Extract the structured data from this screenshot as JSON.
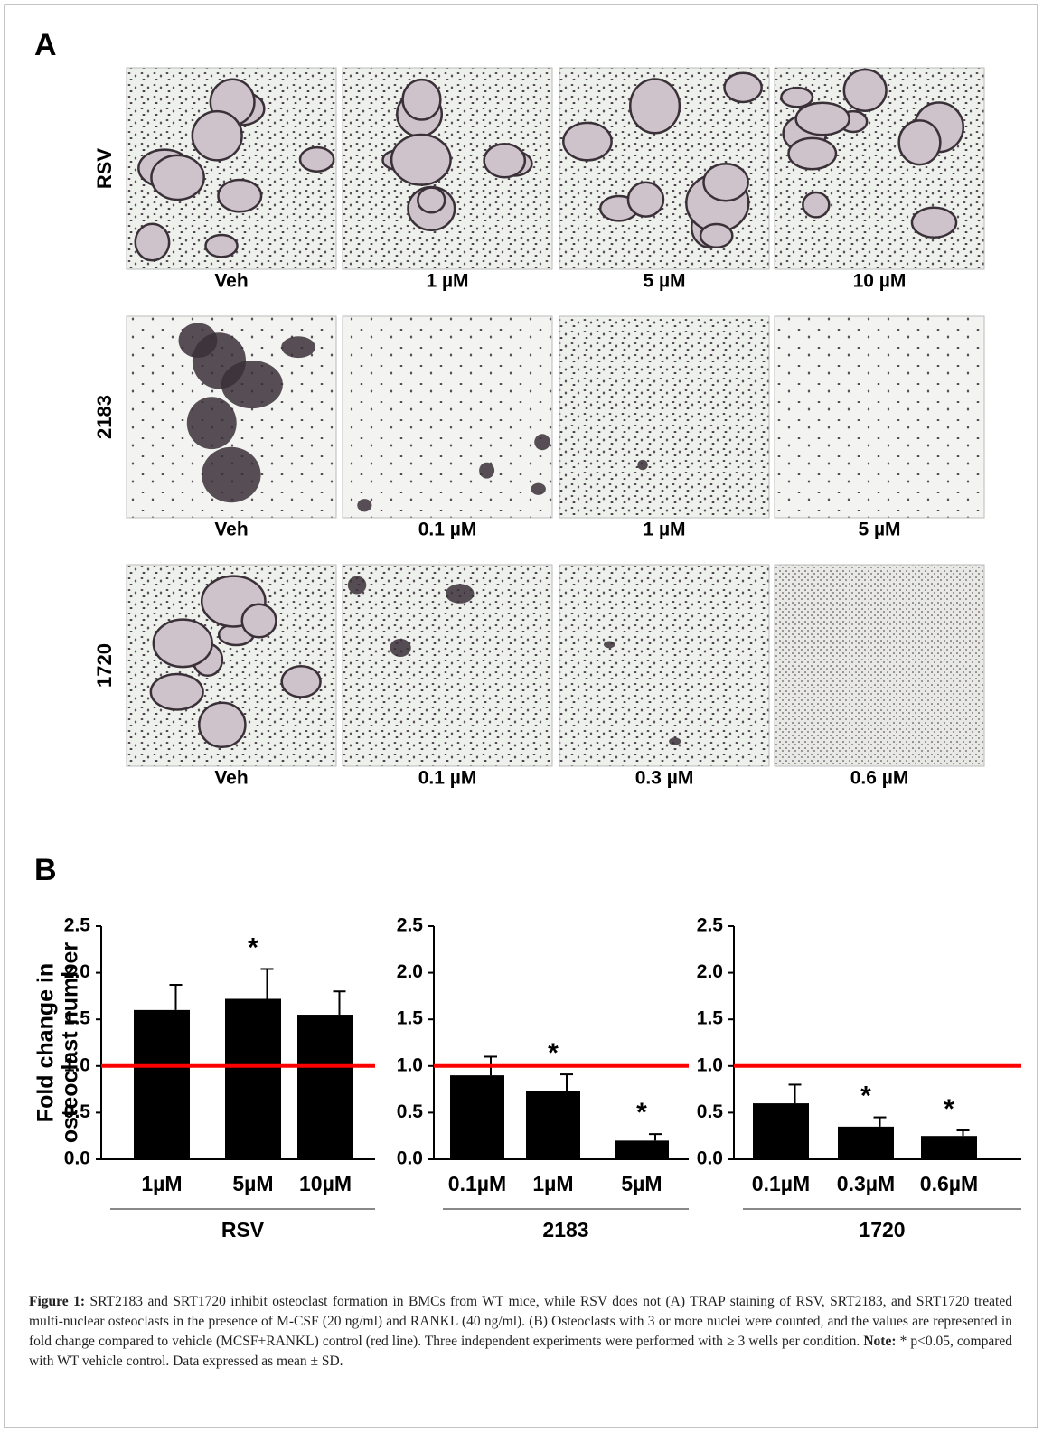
{
  "panel_a": {
    "label": "A",
    "rows": [
      {
        "label": "RSV",
        "columns": [
          "Veh",
          "1 µM",
          "5 µM",
          "10 µM"
        ]
      },
      {
        "label": "2183",
        "columns": [
          "Veh",
          "0.1 µM",
          "1 µM",
          "5 µM"
        ]
      },
      {
        "label": "1720",
        "columns": [
          "Veh",
          "0.1 µM",
          "0.3 µM",
          "0.6 µM"
        ]
      }
    ]
  },
  "panel_b_label": "B",
  "chart_data": [
    {
      "type": "bar",
      "ylabel": [
        "Fold change in",
        "osteoclast number"
      ],
      "group_label": "RSV",
      "categories": [
        "1µM",
        "5µM",
        "10µM"
      ],
      "values": [
        1.6,
        1.72,
        1.55
      ],
      "errors": [
        0.27,
        0.32,
        0.25
      ],
      "significance": [
        null,
        "*",
        null
      ],
      "color": "#000000",
      "ylim": [
        0,
        2.5
      ],
      "yticks": [
        {
          "value": 0,
          "label": "0.0"
        },
        0.5,
        {
          "value": 1,
          "label": "1.0"
        },
        1.5,
        {
          "value": 2,
          "label": "2.0"
        },
        2.5
      ],
      "reference_line": {
        "value": 1,
        "color": "#ff0000"
      }
    },
    {
      "type": "bar",
      "group_label": "2183",
      "categories": [
        "0.1µM",
        "1µM",
        "5µM"
      ],
      "values": [
        0.9,
        0.73,
        0.2
      ],
      "errors": [
        0.2,
        0.18,
        0.07
      ],
      "significance": [
        null,
        "*",
        "*"
      ],
      "color": "#000000",
      "ylim": [
        0,
        2.5
      ],
      "yticks": [
        {
          "value": 0,
          "label": "0.0"
        },
        0.5,
        {
          "value": 1,
          "label": "1.0"
        },
        1.5,
        {
          "value": 2,
          "label": "2.0"
        },
        2.5
      ],
      "reference_line": {
        "value": 1,
        "color": "#ff0000"
      }
    },
    {
      "type": "bar",
      "group_label": "1720",
      "categories": [
        "0.1µM",
        "0.3µM",
        "0.6µM"
      ],
      "values": [
        0.6,
        0.35,
        0.25
      ],
      "errors": [
        0.2,
        0.1,
        0.06
      ],
      "significance": [
        null,
        "*",
        "*"
      ],
      "color": "#000000",
      "ylim": [
        0,
        2.5
      ],
      "yticks": [
        {
          "value": 0,
          "label": "0.0"
        },
        0.5,
        {
          "value": 1,
          "label": "1.0"
        },
        1.5,
        {
          "value": 2,
          "label": "2.0"
        },
        2.5
      ],
      "reference_line": {
        "value": 1,
        "color": "#ff0000"
      }
    }
  ],
  "caption": {
    "label": "Figure 1:",
    "body": "SRT2183 and SRT1720 inhibit osteoclast formation in BMCs from WT mice, while RSV does not (A) TRAP staining of RSV, SRT2183, and SRT1720 treated multi-nuclear osteoclasts in the presence of M-CSF (20 ng/ml) and RANKL (40 ng/ml). (B) Osteoclasts with 3 or more nuclei were counted, and the values are represented in fold change compared to vehicle (MCSF+RANKL) control (red line). Three independent experiments were performed with ≥ 3 wells per condition.",
    "note_label": "Note:",
    "note": "* p<0.05, compared with WT vehicle control. Data expressed as mean ± SD."
  }
}
